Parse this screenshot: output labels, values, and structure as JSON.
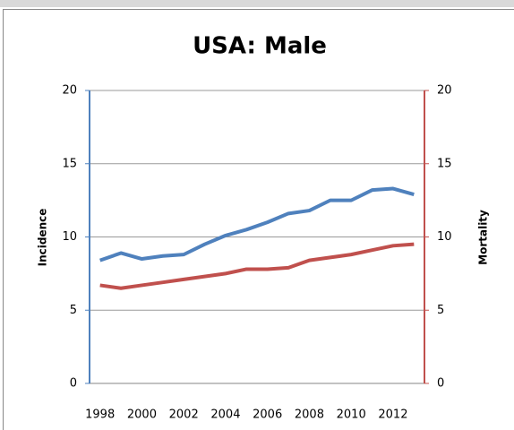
{
  "chart_data": {
    "type": "line",
    "title": "USA: Male",
    "ylabel": "Incidence",
    "y2label": "Mortality",
    "categories": [
      "1998",
      null,
      "2000",
      null,
      "2002",
      null,
      "2004",
      null,
      "2006",
      null,
      "2008",
      null,
      "2010",
      null,
      "2012",
      null
    ],
    "series": [
      {
        "name": "Incidence",
        "color": "#4f81bd",
        "values": [
          8.4,
          8.9,
          8.5,
          8.7,
          8.8,
          9.5,
          10.1,
          10.5,
          11.0,
          11.6,
          11.8,
          12.5,
          12.5,
          13.2,
          13.3,
          12.9
        ]
      },
      {
        "name": "Mortality",
        "color": "#c0504d",
        "axis": "y2",
        "values": [
          6.7,
          6.5,
          6.7,
          6.9,
          7.1,
          7.3,
          7.5,
          7.8,
          7.8,
          7.9,
          8.4,
          8.6,
          8.8,
          9.1,
          9.4,
          9.5
        ]
      }
    ],
    "ylim": [
      0,
      20
    ],
    "yticks": [
      0,
      5,
      10,
      15,
      20
    ],
    "y2lim": [
      0,
      20
    ],
    "y2ticks": [
      0,
      5,
      10,
      15,
      20
    ],
    "grid": true
  }
}
